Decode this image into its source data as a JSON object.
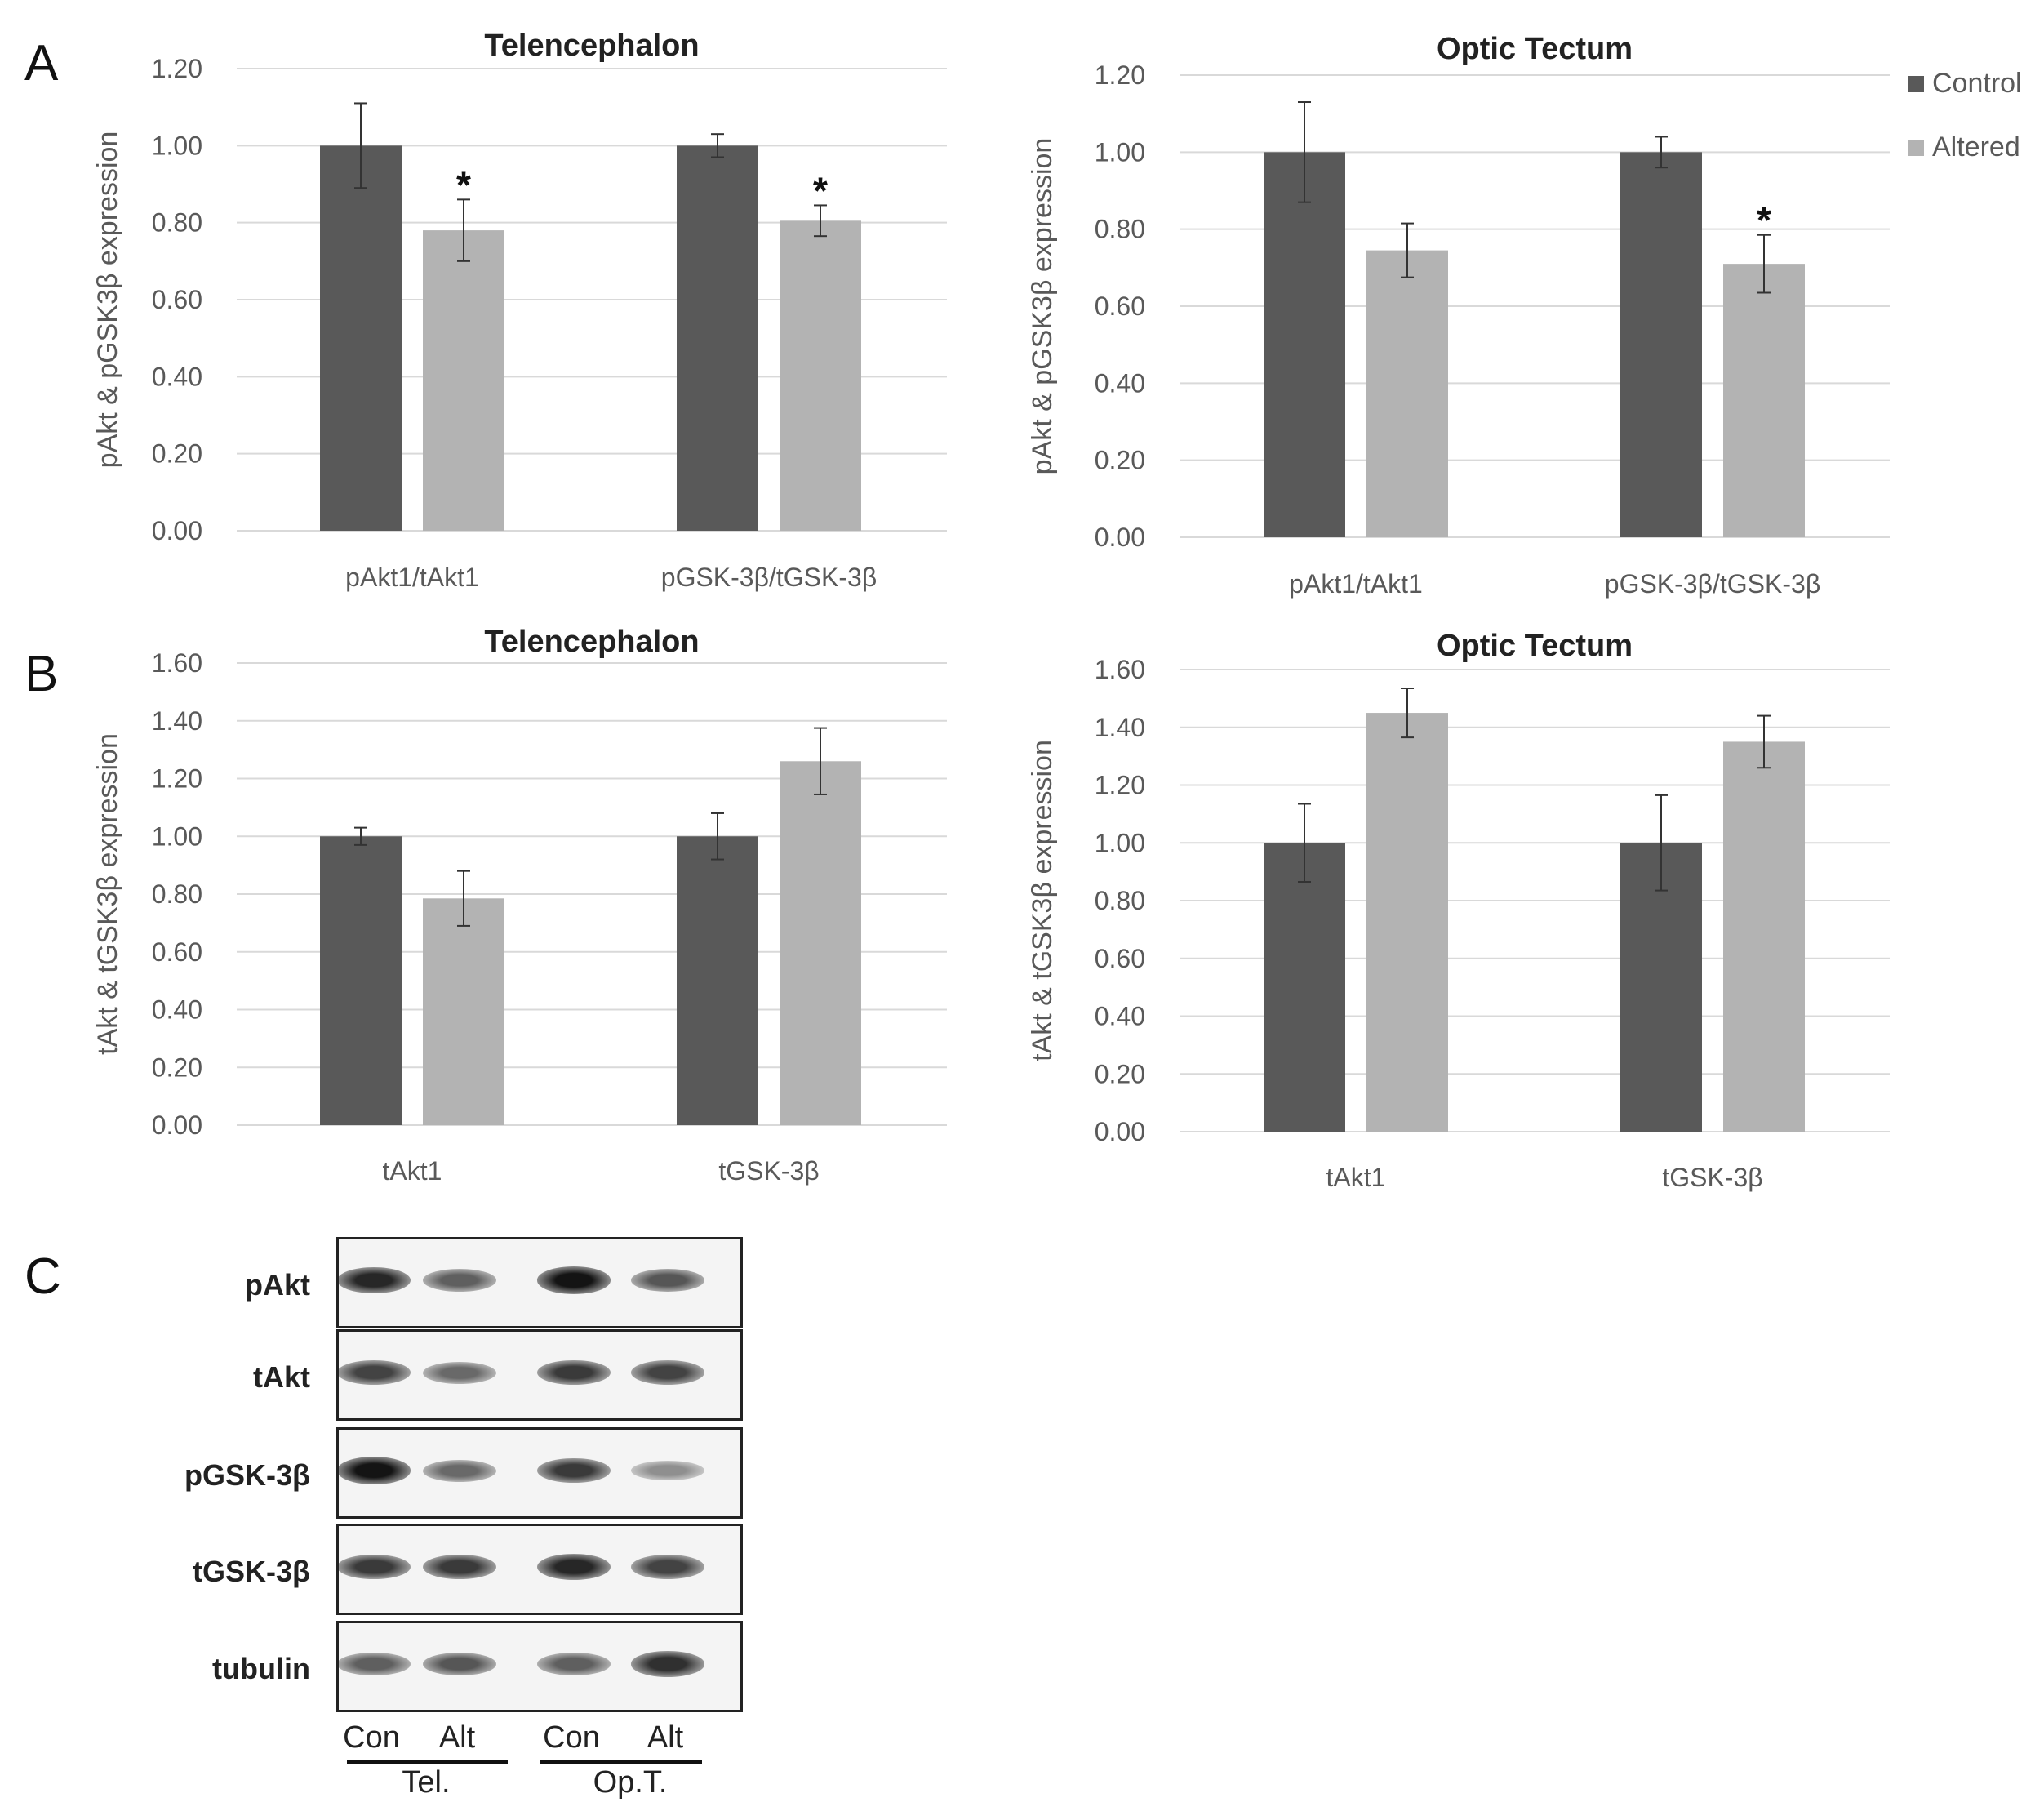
{
  "colors": {
    "control": "#595959",
    "altered": "#b3b3b3",
    "grid": "#d9d9d9",
    "text": "#595959"
  },
  "panel_letters": {
    "a": "A",
    "b": "B",
    "c": "C"
  },
  "legend": {
    "items": [
      "Control",
      "Altered"
    ]
  },
  "chart_data": [
    {
      "type": "bar",
      "panel": "A",
      "title": "Telencephalon",
      "ylabel": "pAkt & pGSK3β  expression",
      "categories": [
        "pAkt1/tAkt1",
        "pGSK-3β/tGSK-3β"
      ],
      "series": [
        {
          "name": "Control",
          "values": [
            1.0,
            1.0
          ],
          "errors": [
            0.11,
            0.03
          ]
        },
        {
          "name": "Altered",
          "values": [
            0.78,
            0.805
          ],
          "errors": [
            0.08,
            0.04
          ]
        }
      ],
      "significance": [
        [
          "",
          "*"
        ],
        [
          "",
          "*"
        ]
      ],
      "significance_marker": "*",
      "ylim": [
        0,
        1.2
      ],
      "yticks": [
        "0.00",
        "0.20",
        "0.40",
        "0.60",
        "0.80",
        "1.00",
        "1.20"
      ],
      "grid": true
    },
    {
      "type": "bar",
      "panel": "A",
      "title": "Optic Tectum",
      "ylabel": "pAkt & pGSK3β  expression",
      "categories": [
        "pAkt1/tAkt1",
        "pGSK-3β/tGSK-3β"
      ],
      "series": [
        {
          "name": "Control",
          "values": [
            1.0,
            1.0
          ],
          "errors": [
            0.13,
            0.04
          ]
        },
        {
          "name": "Altered",
          "values": [
            0.745,
            0.71
          ],
          "errors": [
            0.07,
            0.075
          ]
        }
      ],
      "significance": [
        [
          "",
          ""
        ],
        [
          "",
          "*"
        ]
      ],
      "significance_marker": "*",
      "ylim": [
        0,
        1.2
      ],
      "yticks": [
        "0.00",
        "0.20",
        "0.40",
        "0.60",
        "0.80",
        "1.00",
        "1.20"
      ],
      "grid": true,
      "legend_position": "top-right"
    },
    {
      "type": "bar",
      "panel": "B",
      "title": "Telencephalon",
      "ylabel": "tAkt & tGSK3β  expression",
      "categories": [
        "tAkt1",
        "tGSK-3β"
      ],
      "series": [
        {
          "name": "Control",
          "values": [
            1.0,
            1.0
          ],
          "errors": [
            0.03,
            0.08
          ]
        },
        {
          "name": "Altered",
          "values": [
            0.785,
            1.26
          ],
          "errors": [
            0.095,
            0.115
          ]
        }
      ],
      "significance": [
        [
          "",
          ""
        ],
        [
          "",
          ""
        ]
      ],
      "significance_marker": "*",
      "ylim": [
        0,
        1.6
      ],
      "yticks": [
        "0.00",
        "0.20",
        "0.40",
        "0.60",
        "0.80",
        "1.00",
        "1.20",
        "1.40",
        "1.60"
      ],
      "grid": true
    },
    {
      "type": "bar",
      "panel": "B",
      "title": "Optic Tectum",
      "ylabel": "tAkt & tGSK3β  expression",
      "categories": [
        "tAkt1",
        "tGSK-3β"
      ],
      "series": [
        {
          "name": "Control",
          "values": [
            1.0,
            1.0
          ],
          "errors": [
            0.135,
            0.165
          ]
        },
        {
          "name": "Altered",
          "values": [
            1.45,
            1.35
          ],
          "errors": [
            0.085,
            0.09
          ]
        }
      ],
      "significance": [
        [
          "",
          ""
        ],
        [
          "",
          ""
        ]
      ],
      "significance_marker": "*",
      "ylim": [
        0,
        1.6
      ],
      "yticks": [
        "0.00",
        "0.20",
        "0.40",
        "0.60",
        "0.80",
        "1.00",
        "1.20",
        "1.40",
        "1.60"
      ],
      "grid": true
    }
  ],
  "blot": {
    "rows": [
      {
        "label": "pAkt",
        "intensity": [
          0.85,
          0.55,
          0.95,
          0.6
        ]
      },
      {
        "label": "tAkt",
        "intensity": [
          0.7,
          0.5,
          0.75,
          0.7
        ]
      },
      {
        "label": "pGSK-3β",
        "intensity": [
          0.95,
          0.5,
          0.75,
          0.3
        ]
      },
      {
        "label": "tGSK-3β",
        "intensity": [
          0.75,
          0.75,
          0.85,
          0.7
        ]
      },
      {
        "label": "tubulin",
        "intensity": [
          0.55,
          0.6,
          0.55,
          0.8
        ]
      }
    ],
    "lanes": [
      "Con",
      "Alt",
      "Con",
      "Alt"
    ],
    "groups": [
      "Tel.",
      "Op.T."
    ]
  }
}
